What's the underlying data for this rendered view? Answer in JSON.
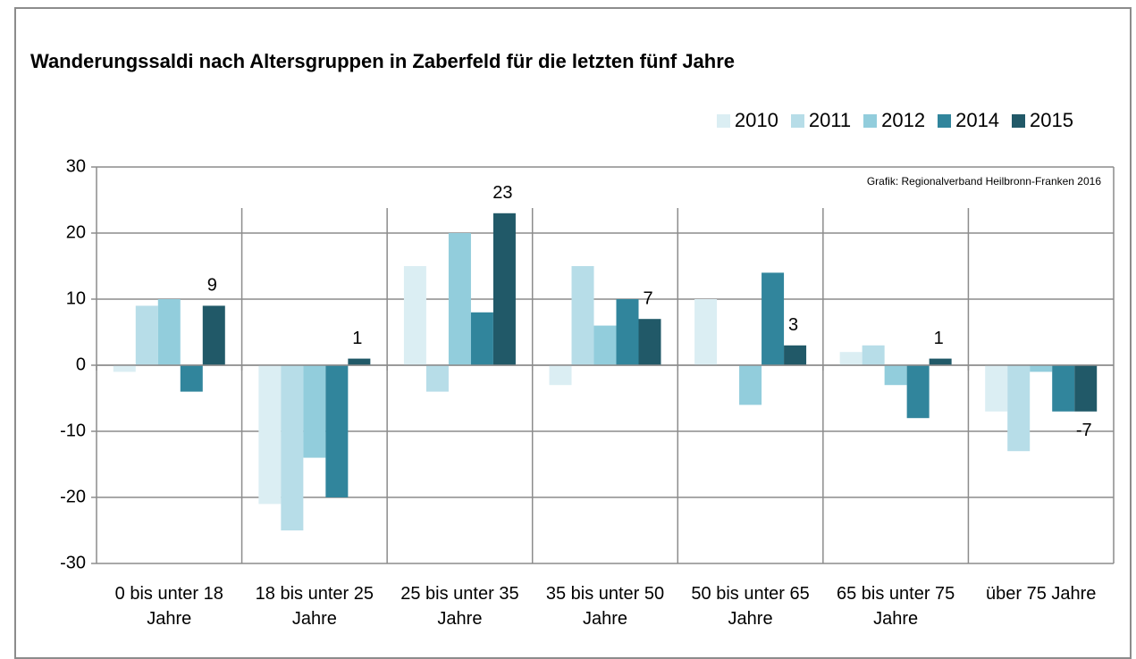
{
  "chart_data": {
    "type": "bar",
    "title": "Wanderungssaldi nach Altersgruppen in Zaberfeld für die letzten fünf Jahre",
    "source": "Grafik: Regionalverband Heilbronn-Franken 2016",
    "categories": [
      "0 bis unter 18 Jahre",
      "18 bis unter 25 Jahre",
      "25 bis unter 35 Jahre",
      "35 bis unter 50 Jahre",
      "50 bis unter 65 Jahre",
      "65 bis unter 75 Jahre",
      "über 75 Jahre"
    ],
    "series": [
      {
        "name": "2010",
        "color": "#dbeef3",
        "values": [
          -1,
          -21,
          15,
          -3,
          10,
          2,
          -7
        ]
      },
      {
        "name": "2011",
        "color": "#b7dde8",
        "values": [
          9,
          -25,
          -4,
          15,
          0,
          3,
          -13
        ]
      },
      {
        "name": "2012",
        "color": "#92cddc",
        "values": [
          10,
          -14,
          20,
          6,
          -6,
          -3,
          -1
        ]
      },
      {
        "name": "2014",
        "color": "#31859c",
        "values": [
          -4,
          -20,
          8,
          10,
          14,
          -8,
          -7
        ]
      },
      {
        "name": "2015",
        "color": "#215968",
        "values": [
          9,
          1,
          23,
          7,
          3,
          1,
          -7
        ],
        "data_labels": true
      }
    ],
    "ylim": [
      -30,
      30
    ],
    "yticks": [
      -30,
      -20,
      -10,
      0,
      10,
      20,
      30
    ],
    "grid": true,
    "legend": "top-right"
  }
}
